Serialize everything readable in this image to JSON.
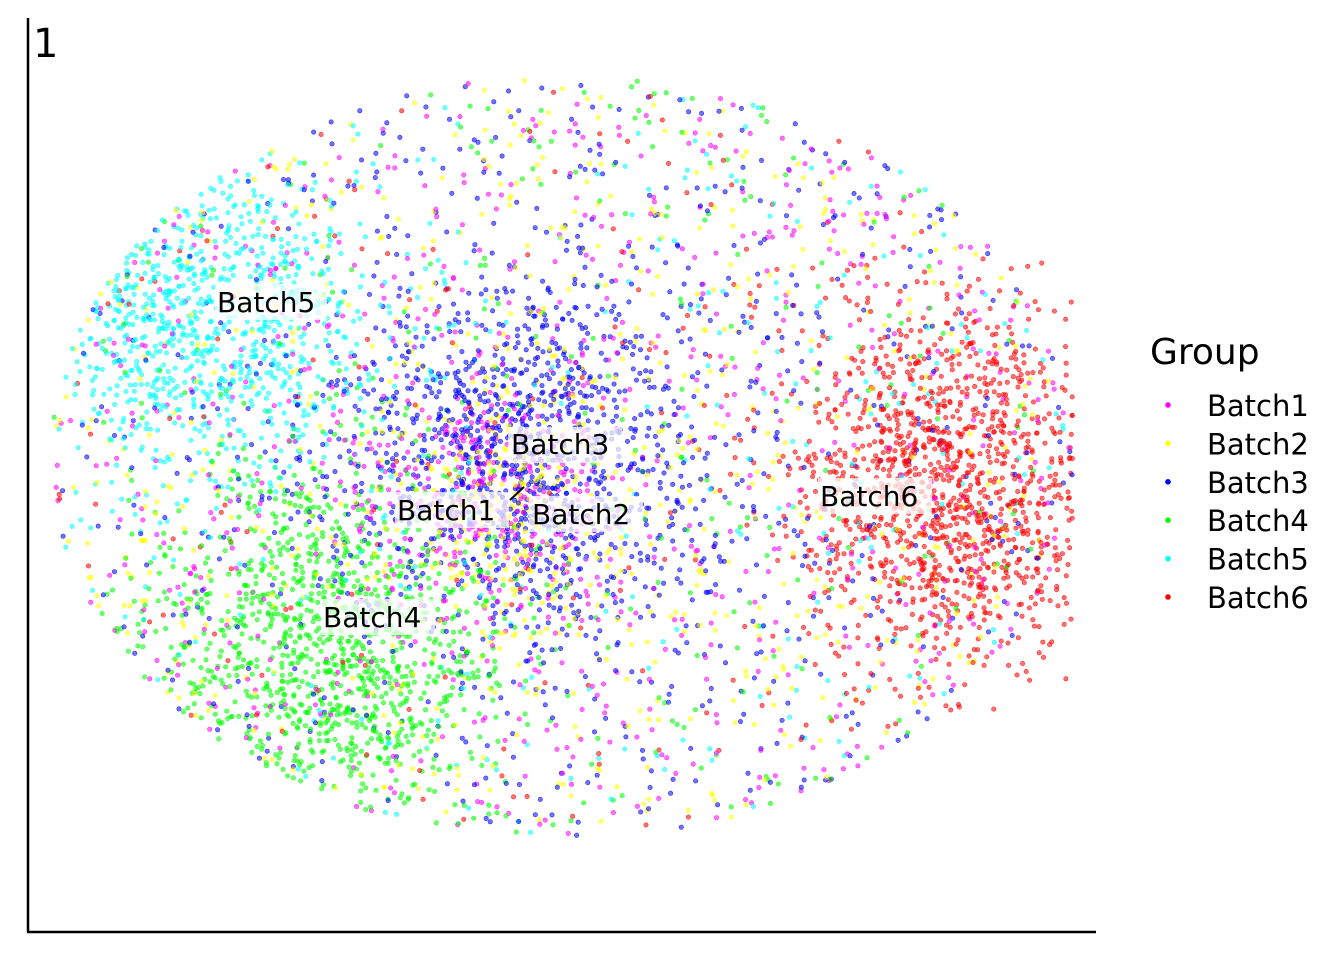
{
  "chart_data": {
    "type": "scatter",
    "panel_tag": "1",
    "title": "",
    "xlabel": "",
    "ylabel": "",
    "xlim": [
      0,
      100
    ],
    "ylim": [
      0,
      100
    ],
    "axes": {
      "x_ticks": false,
      "y_ticks": false,
      "grid": false
    },
    "legend": {
      "title": "Group",
      "placement": "right",
      "items": [
        {
          "label": "Batch1",
          "color": "#ff00ff"
        },
        {
          "label": "Batch2",
          "color": "#ffff00"
        },
        {
          "label": "Batch3",
          "color": "#0000ff"
        },
        {
          "label": "Batch4",
          "color": "#00ff00"
        },
        {
          "label": "Batch5",
          "color": "#00ffff"
        },
        {
          "label": "Batch6",
          "color": "#ff0000"
        }
      ]
    },
    "series": [
      {
        "name": "Batch1",
        "color": "#ff00ff",
        "center": [
          43,
          48
        ],
        "label": "Batch1"
      },
      {
        "name": "Batch2",
        "color": "#ffff00",
        "center": [
          45,
          47
        ],
        "label": "Batch2"
      },
      {
        "name": "Batch3",
        "color": "#0000ff",
        "center": [
          46,
          52
        ],
        "label": "Batch3"
      },
      {
        "name": "Batch4",
        "color": "#00ff00",
        "center": [
          28,
          31
        ],
        "label": "Batch4"
      },
      {
        "name": "Batch5",
        "color": "#00ffff",
        "center": [
          16,
          67
        ],
        "label": "Batch5"
      },
      {
        "name": "Batch6",
        "color": "#ff0000",
        "center": [
          86,
          49
        ],
        "label": "Batch6"
      }
    ]
  }
}
